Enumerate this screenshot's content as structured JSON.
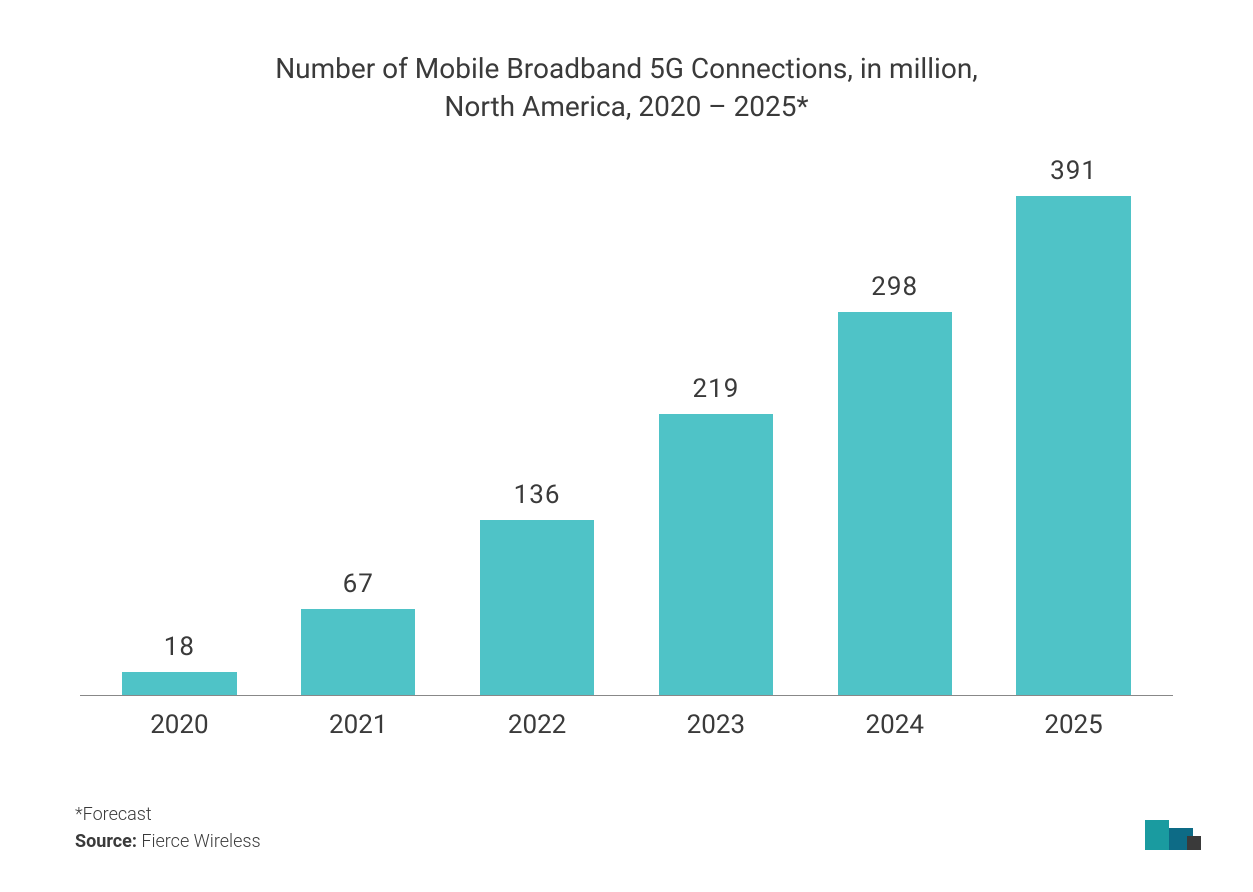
{
  "chart": {
    "type": "bar",
    "title": "Number of Mobile Broadband 5G Connections, in million, North America, 2020 – 2025*",
    "title_fontsize": 28,
    "title_color": "#3a3a3a",
    "categories": [
      "2020",
      "2021",
      "2022",
      "2023",
      "2024",
      "2025"
    ],
    "values": [
      18,
      67,
      136,
      219,
      298,
      391
    ],
    "value_labels": [
      "18",
      "67",
      "136",
      "219",
      "298",
      "391"
    ],
    "bar_color": "#4fc3c7",
    "value_label_color": "#3a3a3a",
    "value_label_fontsize": 26,
    "xaxis_label_color": "#3a3a3a",
    "xaxis_label_fontsize": 26,
    "axis_line_color": "#888888",
    "background_color": "#ffffff",
    "ylim_max": 420,
    "bar_width_ratio": 0.64
  },
  "footnotes": {
    "forecast": "*Forecast",
    "source_label": "Source:",
    "source_value": "Fierce Wireless"
  },
  "logo": {
    "color_primary": "#1a9ba0",
    "color_mid": "#0d6b86",
    "color_accent": "#3a3a3a"
  }
}
